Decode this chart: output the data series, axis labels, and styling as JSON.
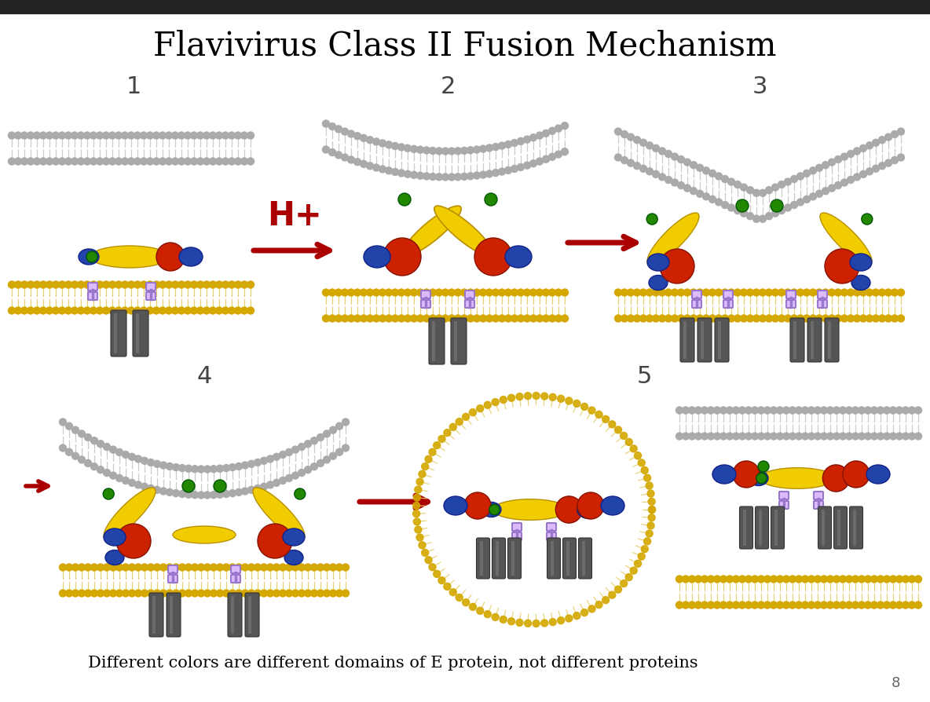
{
  "title": "Flavivirus Class II Fusion Mechanism",
  "title_fontsize": 30,
  "title_font": "serif",
  "subtitle": "Different colors are different domains of E protein, not different proteins",
  "subtitle_fontsize": 15,
  "subtitle_font": "serif",
  "page_number": "8",
  "background_color": "#ffffff",
  "step_label_fontsize": 22,
  "step_label_color": "#444444",
  "hplus_color": "#aa0000",
  "hplus_fontsize": 30,
  "arrow_color": "#aa0000",
  "mem_gray_dot": "#aaaaaa",
  "mem_gray_line": "#cccccc",
  "mem_yellow_dot": "#d4a800",
  "mem_yellow_line": "#e8d070",
  "domain_yellow": "#f0cc00",
  "domain_red": "#cc2200",
  "domain_blue": "#2244aa",
  "domain_green": "#228800",
  "stem_color": "#9977cc",
  "tm_color": "#555555",
  "tm_highlight": "#888888"
}
